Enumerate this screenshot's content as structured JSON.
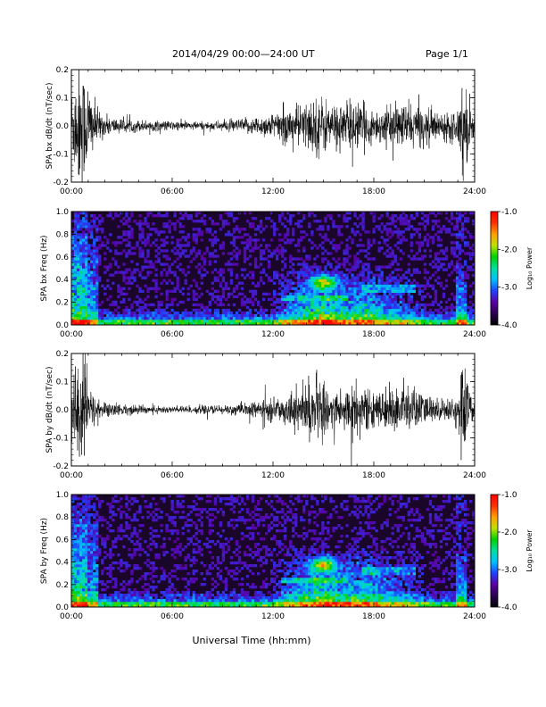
{
  "header": {
    "title": "2014/04/29   00:00—24:00 UT",
    "page": "Page 1/1"
  },
  "xlabel": "Universal Time (hh:mm)",
  "chart_data": [
    {
      "type": "line",
      "ylabel": "SPA bx dB/dt (nT/sec)",
      "ylim": [
        -0.2,
        0.2
      ],
      "yticks": [
        "0.2",
        "0.1",
        "0.0",
        "-0.1",
        "-0.2"
      ],
      "xlim": [
        "00:00",
        "24:00"
      ],
      "xticks": [
        "00:00",
        "06:00",
        "12:00",
        "18:00",
        "24:00"
      ],
      "series_color": "#000000",
      "envelope_profile": {
        "hours": [
          0,
          0.3,
          0.5,
          0.8,
          1.0,
          1.3,
          1.6,
          2,
          3,
          5,
          8,
          10,
          11,
          12,
          13,
          14,
          14.8,
          15.5,
          16.5,
          17,
          18,
          19,
          20,
          21,
          22,
          23,
          23.3,
          23.6,
          24
        ],
        "amplitude": [
          0.15,
          0.2,
          0.25,
          0.2,
          0.18,
          0.1,
          0.06,
          0.04,
          0.025,
          0.02,
          0.015,
          0.025,
          0.035,
          0.05,
          0.07,
          0.09,
          0.12,
          0.08,
          0.1,
          0.09,
          0.06,
          0.07,
          0.09,
          0.07,
          0.05,
          0.06,
          0.2,
          0.12,
          0.04
        ]
      }
    },
    {
      "type": "heatmap",
      "ylabel": "SPA bx Freq (Hz)",
      "ylim": [
        0.0,
        1.0
      ],
      "yticks": [
        "1.0",
        "0.8",
        "0.6",
        "0.4",
        "0.2",
        "0.0"
      ],
      "xlim": [
        "00:00",
        "24:00"
      ],
      "xticks": [
        "00:00",
        "06:00",
        "12:00",
        "18:00",
        "24:00"
      ],
      "colorbar": {
        "label": "Log₁₀ Power",
        "range": [
          -4.0,
          -1.0
        ],
        "ticks": [
          "-1.0",
          "-2.0",
          "-3.0",
          "-4.0"
        ]
      }
    },
    {
      "type": "line",
      "ylabel": "SPA by dB/dt (nT/sec)",
      "ylim": [
        -0.2,
        0.2
      ],
      "yticks": [
        "0.2",
        "0.1",
        "0.0",
        "-0.1",
        "-0.2"
      ],
      "xlim": [
        "00:00",
        "24:00"
      ],
      "xticks": [
        "00:00",
        "06:00",
        "12:00",
        "18:00",
        "24:00"
      ],
      "series_color": "#000000",
      "envelope_profile": {
        "hours": [
          0,
          0.3,
          0.5,
          0.8,
          1.0,
          1.3,
          1.6,
          2,
          3,
          5,
          8,
          10,
          11,
          12,
          13,
          14,
          14.8,
          15.5,
          16.5,
          17,
          18,
          19,
          20,
          21,
          22,
          23,
          23.3,
          23.6,
          24
        ],
        "amplitude": [
          0.12,
          0.2,
          0.25,
          0.2,
          0.12,
          0.06,
          0.04,
          0.03,
          0.02,
          0.015,
          0.015,
          0.02,
          0.03,
          0.04,
          0.06,
          0.1,
          0.12,
          0.07,
          0.1,
          0.1,
          0.06,
          0.08,
          0.1,
          0.06,
          0.04,
          0.05,
          0.2,
          0.1,
          0.03
        ]
      }
    },
    {
      "type": "heatmap",
      "ylabel": "SPA by Freq (Hz)",
      "ylim": [
        0.0,
        1.0
      ],
      "yticks": [
        "1.0",
        "0.8",
        "0.6",
        "0.4",
        "0.2",
        "0.0"
      ],
      "xlim": [
        "00:00",
        "24:00"
      ],
      "xticks": [
        "00:00",
        "06:00",
        "12:00",
        "18:00",
        "24:00"
      ],
      "colorbar": {
        "label": "Log₁₀ Power",
        "range": [
          -4.0,
          -1.0
        ],
        "ticks": [
          "-1.0",
          "-2.0",
          "-3.0",
          "-4.0"
        ]
      }
    }
  ],
  "colors": {
    "colormap": [
      "#000000",
      "#2a0050",
      "#5a00a0",
      "#2040ff",
      "#00c0ff",
      "#00e0a0",
      "#00d000",
      "#c0e000",
      "#ffa000",
      "#ff3000",
      "#ff0000"
    ]
  }
}
